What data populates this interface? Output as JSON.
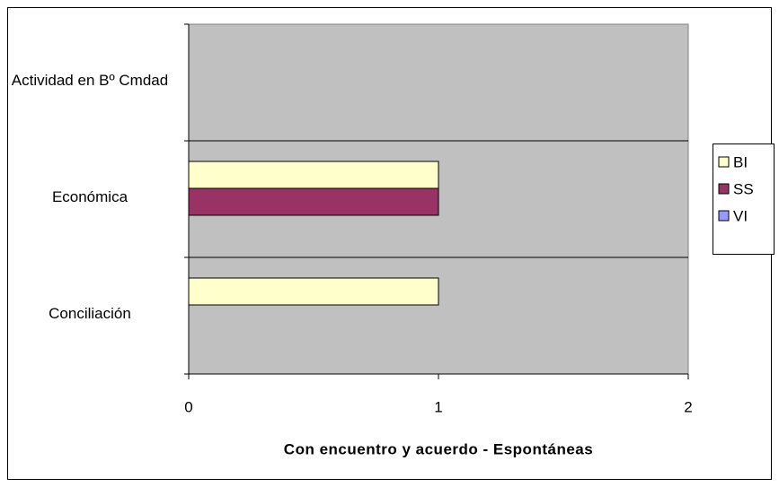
{
  "chart_data": {
    "type": "bar",
    "orientation": "horizontal",
    "categories": [
      "Actividad en Bº Cmdad",
      "Económica",
      "Conciliación"
    ],
    "series": [
      {
        "name": "BI",
        "color": "#FFFFCC",
        "values": [
          0,
          1,
          1
        ]
      },
      {
        "name": "SS",
        "color": "#993366",
        "values": [
          0,
          1,
          0
        ]
      },
      {
        "name": "VI",
        "color": "#9999FF",
        "values": [
          0,
          0,
          0
        ]
      }
    ],
    "xlabel": "Con encuentro y acuerdo - Espontáneas",
    "xlim": [
      0,
      2
    ],
    "xticks": [
      0,
      1,
      2
    ],
    "plot_background": "#C0C0C0",
    "legend": "right"
  }
}
